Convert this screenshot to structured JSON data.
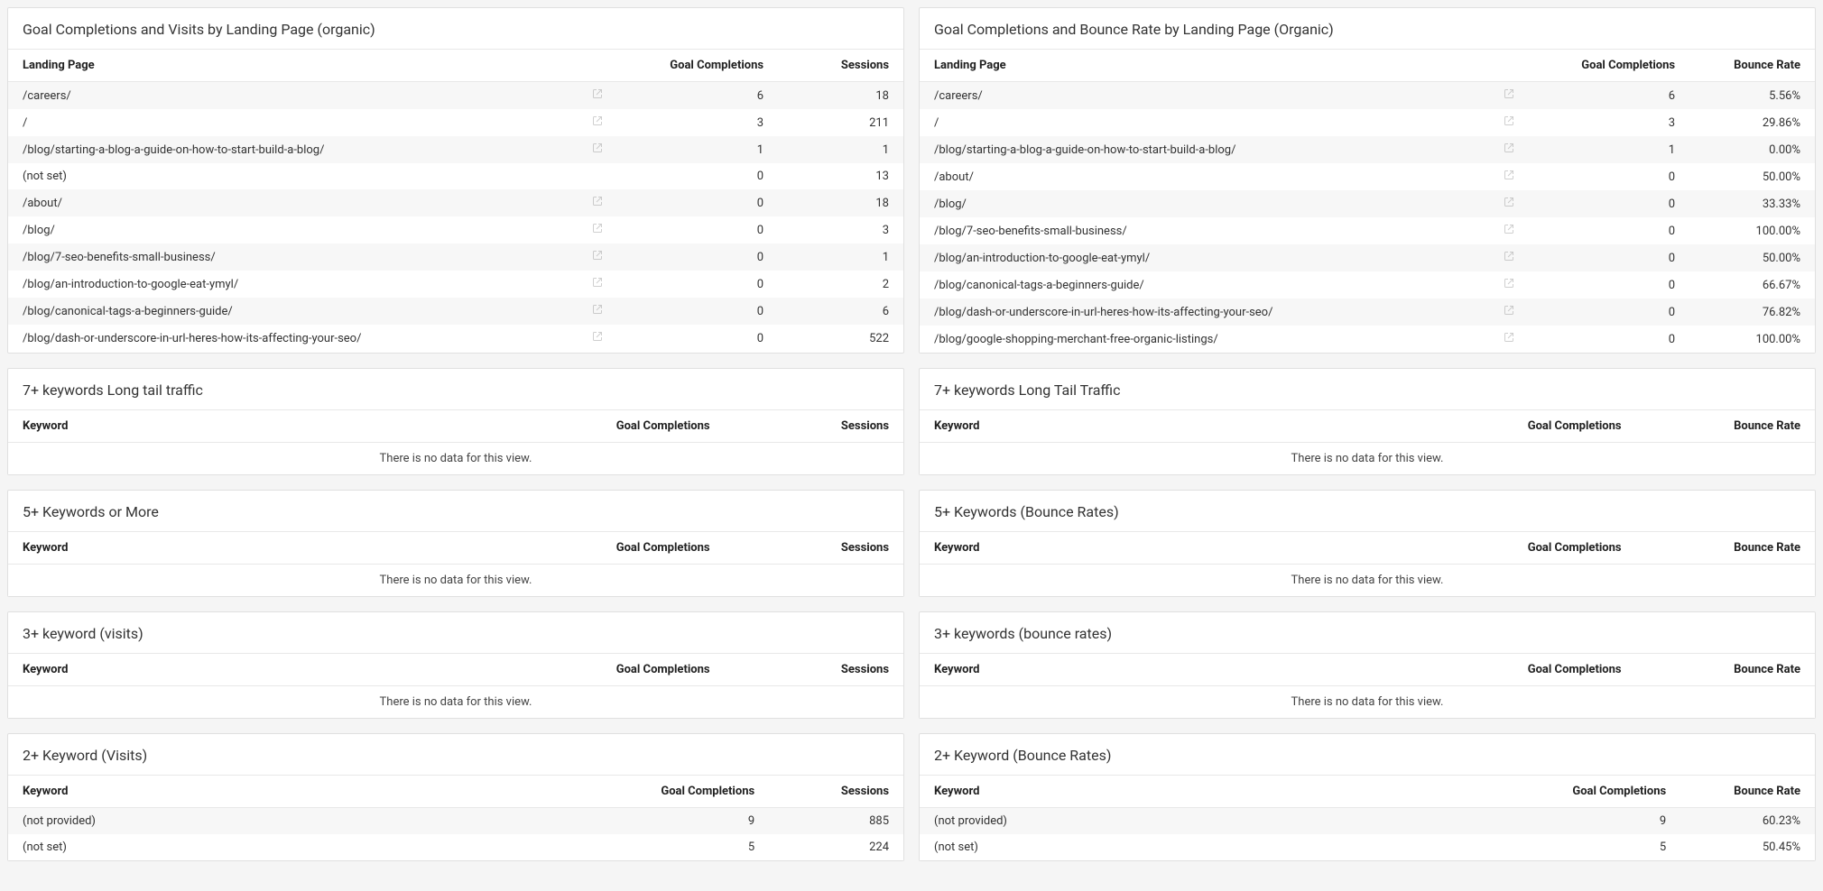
{
  "no_data_text": "There is no data for this view.",
  "styling": {
    "page_bg": "#f5f5f5",
    "card_bg": "#ffffff",
    "card_border": "#e0e0e0",
    "row_stripe_odd": "#f7f7f7",
    "row_stripe_even": "#ffffff",
    "header_border": "#e8e8e8",
    "text_color": "#333333",
    "title_fontsize": 16,
    "body_fontsize": 13,
    "ext_icon_color": "#888888"
  },
  "cards": [
    {
      "id": "lp-visits",
      "title": "Goal Completions and Visits by Landing Page (organic)",
      "columns": [
        {
          "key": "page",
          "label": "Landing Page",
          "type": "lp"
        },
        {
          "key": "gc",
          "label": "Goal Completions",
          "type": "num"
        },
        {
          "key": "sess",
          "label": "Sessions",
          "type": "num"
        }
      ],
      "rows": [
        {
          "page": "/careers/",
          "ext": true,
          "gc": "6",
          "sess": "18"
        },
        {
          "page": "/",
          "ext": true,
          "gc": "3",
          "sess": "211"
        },
        {
          "page": "/blog/starting-a-blog-a-guide-on-how-to-start-build-a-blog/",
          "ext": true,
          "gc": "1",
          "sess": "1"
        },
        {
          "page": "(not set)",
          "ext": false,
          "gc": "0",
          "sess": "13"
        },
        {
          "page": "/about/",
          "ext": true,
          "gc": "0",
          "sess": "18"
        },
        {
          "page": "/blog/",
          "ext": true,
          "gc": "0",
          "sess": "3"
        },
        {
          "page": "/blog/7-seo-benefits-small-business/",
          "ext": true,
          "gc": "0",
          "sess": "1"
        },
        {
          "page": "/blog/an-introduction-to-google-eat-ymyl/",
          "ext": true,
          "gc": "0",
          "sess": "2"
        },
        {
          "page": "/blog/canonical-tags-a-beginners-guide/",
          "ext": true,
          "gc": "0",
          "sess": "6"
        },
        {
          "page": "/blog/dash-or-underscore-in-url-heres-how-its-affecting-your-seo/",
          "ext": true,
          "gc": "0",
          "sess": "522"
        }
      ],
      "col_widths": [
        "68%",
        "18%",
        "14%"
      ]
    },
    {
      "id": "lp-bounce",
      "title": "Goal Completions and Bounce Rate by Landing Page (Organic)",
      "columns": [
        {
          "key": "page",
          "label": "Landing Page",
          "type": "lp"
        },
        {
          "key": "gc",
          "label": "Goal Completions",
          "type": "num"
        },
        {
          "key": "br",
          "label": "Bounce Rate",
          "type": "num"
        }
      ],
      "rows": [
        {
          "page": "/careers/",
          "ext": true,
          "gc": "6",
          "br": "5.56%"
        },
        {
          "page": "/",
          "ext": true,
          "gc": "3",
          "br": "29.86%"
        },
        {
          "page": "/blog/starting-a-blog-a-guide-on-how-to-start-build-a-blog/",
          "ext": true,
          "gc": "1",
          "br": "0.00%"
        },
        {
          "page": "/about/",
          "ext": true,
          "gc": "0",
          "br": "50.00%"
        },
        {
          "page": "/blog/",
          "ext": true,
          "gc": "0",
          "br": "33.33%"
        },
        {
          "page": "/blog/7-seo-benefits-small-business/",
          "ext": true,
          "gc": "0",
          "br": "100.00%"
        },
        {
          "page": "/blog/an-introduction-to-google-eat-ymyl/",
          "ext": true,
          "gc": "0",
          "br": "50.00%"
        },
        {
          "page": "/blog/canonical-tags-a-beginners-guide/",
          "ext": true,
          "gc": "0",
          "br": "66.67%"
        },
        {
          "page": "/blog/dash-or-underscore-in-url-heres-how-its-affecting-your-seo/",
          "ext": true,
          "gc": "0",
          "br": "76.82%"
        },
        {
          "page": "/blog/google-shopping-merchant-free-organic-listings/",
          "ext": true,
          "gc": "0",
          "br": "100.00%"
        }
      ],
      "col_widths": [
        "68%",
        "18%",
        "14%"
      ]
    },
    {
      "id": "kw7-visits",
      "title": "7+ keywords Long tail traffic",
      "columns": [
        {
          "key": "kw",
          "label": "Keyword",
          "type": "text"
        },
        {
          "key": "gc",
          "label": "Goal Completions",
          "type": "num"
        },
        {
          "key": "sess",
          "label": "Sessions",
          "type": "num"
        }
      ],
      "rows": [],
      "col_widths": [
        "60%",
        "20%",
        "20%"
      ]
    },
    {
      "id": "kw7-bounce",
      "title": "7+ keywords Long Tail Traffic",
      "columns": [
        {
          "key": "kw",
          "label": "Keyword",
          "type": "text"
        },
        {
          "key": "gc",
          "label": "Goal Completions",
          "type": "num"
        },
        {
          "key": "br",
          "label": "Bounce Rate",
          "type": "num"
        }
      ],
      "rows": [],
      "col_widths": [
        "60%",
        "20%",
        "20%"
      ]
    },
    {
      "id": "kw5-visits",
      "title": "5+ Keywords or More",
      "columns": [
        {
          "key": "kw",
          "label": "Keyword",
          "type": "text"
        },
        {
          "key": "gc",
          "label": "Goal Completions",
          "type": "num"
        },
        {
          "key": "sess",
          "label": "Sessions",
          "type": "num"
        }
      ],
      "rows": [],
      "col_widths": [
        "60%",
        "20%",
        "20%"
      ]
    },
    {
      "id": "kw5-bounce",
      "title": "5+ Keywords (Bounce Rates)",
      "columns": [
        {
          "key": "kw",
          "label": "Keyword",
          "type": "text"
        },
        {
          "key": "gc",
          "label": "Goal Completions",
          "type": "num"
        },
        {
          "key": "br",
          "label": "Bounce Rate",
          "type": "num"
        }
      ],
      "rows": [],
      "col_widths": [
        "60%",
        "20%",
        "20%"
      ]
    },
    {
      "id": "kw3-visits",
      "title": "3+ keyword (visits)",
      "columns": [
        {
          "key": "kw",
          "label": "Keyword",
          "type": "text"
        },
        {
          "key": "gc",
          "label": "Goal Completions",
          "type": "num"
        },
        {
          "key": "sess",
          "label": "Sessions",
          "type": "num"
        }
      ],
      "rows": [],
      "col_widths": [
        "60%",
        "20%",
        "20%"
      ]
    },
    {
      "id": "kw3-bounce",
      "title": "3+ keywords (bounce rates)",
      "columns": [
        {
          "key": "kw",
          "label": "Keyword",
          "type": "text"
        },
        {
          "key": "gc",
          "label": "Goal Completions",
          "type": "num"
        },
        {
          "key": "br",
          "label": "Bounce Rate",
          "type": "num"
        }
      ],
      "rows": [],
      "col_widths": [
        "60%",
        "20%",
        "20%"
      ]
    },
    {
      "id": "kw2-visits",
      "title": "2+ Keyword (Visits)",
      "columns": [
        {
          "key": "kw",
          "label": "Keyword",
          "type": "text"
        },
        {
          "key": "gc",
          "label": "Goal Completions",
          "type": "num"
        },
        {
          "key": "sess",
          "label": "Sessions",
          "type": "num"
        }
      ],
      "rows": [
        {
          "kw": "(not provided)",
          "gc": "9",
          "sess": "885"
        },
        {
          "kw": "(not set)",
          "gc": "5",
          "sess": "224"
        }
      ],
      "col_widths": [
        "60%",
        "25%",
        "15%"
      ]
    },
    {
      "id": "kw2-bounce",
      "title": "2+ Keyword (Bounce Rates)",
      "columns": [
        {
          "key": "kw",
          "label": "Keyword",
          "type": "text"
        },
        {
          "key": "gc",
          "label": "Goal Completions",
          "type": "num"
        },
        {
          "key": "br",
          "label": "Bounce Rate",
          "type": "num"
        }
      ],
      "rows": [
        {
          "kw": "(not provided)",
          "gc": "9",
          "br": "60.23%"
        },
        {
          "kw": "(not set)",
          "gc": "5",
          "br": "50.45%"
        }
      ],
      "col_widths": [
        "60%",
        "25%",
        "15%"
      ]
    }
  ]
}
